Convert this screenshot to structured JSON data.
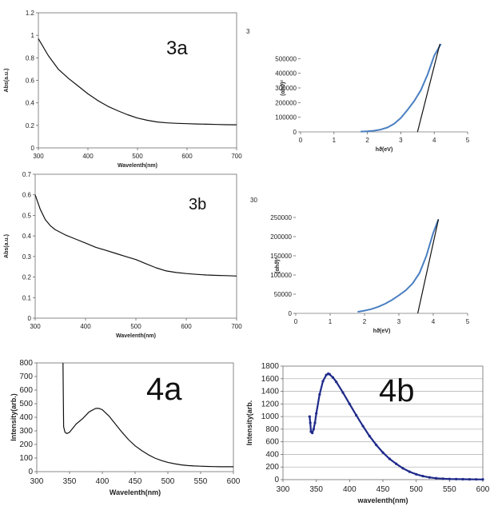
{
  "chart_data": [
    {
      "id": "3a-abs",
      "type": "line",
      "panel_label": "3a",
      "xlabel": "Wavelenth(nm)",
      "ylabel": "Abs(a.u.)",
      "xlim": [
        300,
        700
      ],
      "ylim": [
        0,
        1.2
      ],
      "xticks": [
        "300",
        "400",
        "500",
        "600",
        "700"
      ],
      "yticks": [
        "0",
        "0.2",
        "0.4",
        "0.6",
        "0.8",
        "1",
        "1.2"
      ],
      "colors": {
        "line": "#111111"
      },
      "series": [
        {
          "x": [
            300,
            320,
            340,
            360,
            380,
            400,
            420,
            440,
            460,
            480,
            500,
            520,
            540,
            560,
            580,
            600,
            620,
            640,
            660,
            680,
            700
          ],
          "y": [
            0.97,
            0.82,
            0.7,
            0.62,
            0.55,
            0.48,
            0.42,
            0.37,
            0.33,
            0.295,
            0.265,
            0.245,
            0.23,
            0.222,
            0.218,
            0.215,
            0.212,
            0.21,
            0.208,
            0.206,
            0.205
          ]
        }
      ]
    },
    {
      "id": "3a-tauc",
      "type": "line",
      "title_fragment": "3",
      "xlabel": "hϑ(eV)",
      "ylabel": "(αhϑ)²",
      "xlim": [
        0,
        5
      ],
      "ylim": [
        0,
        600000
      ],
      "xticks": [
        "0",
        "1",
        "2",
        "3",
        "4",
        "5"
      ],
      "yticks": [
        "0",
        "100000",
        "200000",
        "300000",
        "400000",
        "500000"
      ],
      "colors": {
        "curve": "#4a7fc1",
        "tangent": "#111111"
      },
      "series": [
        {
          "x": [
            1.8,
            2.0,
            2.2,
            2.4,
            2.6,
            2.8,
            3.0,
            3.2,
            3.4,
            3.6,
            3.8,
            4.0,
            4.2
          ],
          "y": [
            2000,
            4000,
            8000,
            16000,
            30000,
            55000,
            95000,
            150000,
            210000,
            285000,
            390000,
            520000,
            600000
          ]
        },
        {
          "x": [
            3.5,
            4.17
          ],
          "y": [
            0,
            600000
          ]
        }
      ]
    },
    {
      "id": "3b-abs",
      "type": "line",
      "panel_label": "3b",
      "xlabel": "Wavelenth(nm)",
      "ylabel": "Abs(a.u.)",
      "xlim": [
        300,
        700
      ],
      "ylim": [
        0,
        0.7
      ],
      "xticks": [
        "300",
        "400",
        "500",
        "600",
        "700"
      ],
      "yticks": [
        "0",
        "0.1",
        "0.2",
        "0.3",
        "0.4",
        "0.5",
        "0.6",
        "0.7"
      ],
      "colors": {
        "line": "#111111"
      },
      "series": [
        {
          "x": [
            300,
            310,
            320,
            330,
            340,
            360,
            380,
            400,
            420,
            440,
            460,
            480,
            500,
            520,
            540,
            560,
            580,
            600,
            620,
            640,
            660,
            680,
            700
          ],
          "y": [
            0.6,
            0.53,
            0.48,
            0.45,
            0.43,
            0.405,
            0.385,
            0.365,
            0.345,
            0.33,
            0.315,
            0.3,
            0.285,
            0.265,
            0.245,
            0.23,
            0.222,
            0.217,
            0.213,
            0.21,
            0.208,
            0.207,
            0.205
          ]
        }
      ]
    },
    {
      "id": "3b-tauc",
      "type": "line",
      "title_fragment": "30",
      "xlabel": "hϑ(eV)",
      "ylabel": "(αhϑ)²",
      "xlim": [
        0,
        5
      ],
      "ylim": [
        0,
        250000
      ],
      "xticks": [
        "0",
        "1",
        "2",
        "3",
        "4",
        "5"
      ],
      "yticks": [
        "0",
        "50000",
        "100000",
        "150000",
        "200000",
        "250000"
      ],
      "colors": {
        "curve": "#4a7fc1",
        "tangent": "#111111"
      },
      "series": [
        {
          "x": [
            1.8,
            2.0,
            2.2,
            2.4,
            2.6,
            2.8,
            3.0,
            3.2,
            3.4,
            3.6,
            3.8,
            4.0,
            4.15
          ],
          "y": [
            4000,
            7000,
            11000,
            17000,
            25000,
            35000,
            47000,
            60000,
            78000,
            105000,
            150000,
            210000,
            245000
          ]
        },
        {
          "x": [
            3.55,
            4.15
          ],
          "y": [
            0,
            245000
          ]
        }
      ]
    },
    {
      "id": "4a-pl",
      "type": "line",
      "panel_label": "4a",
      "xlabel": "Wavelenth(nm)",
      "ylabel": "Intensity(arb.)",
      "xlim": [
        300,
        600
      ],
      "ylim": [
        0,
        800
      ],
      "xticks": [
        "300",
        "350",
        "400",
        "450",
        "500",
        "550",
        "600"
      ],
      "yticks": [
        "0",
        "100",
        "200",
        "300",
        "400",
        "500",
        "600",
        "700",
        "800"
      ],
      "colors": {
        "line": "#111111"
      },
      "series": [
        {
          "x": [
            340,
            341,
            343,
            346,
            350,
            355,
            360,
            370,
            380,
            390,
            395,
            400,
            410,
            420,
            430,
            440,
            450,
            460,
            470,
            480,
            490,
            500,
            510,
            520,
            530,
            540,
            550,
            560,
            570,
            580,
            590,
            600
          ],
          "y": [
            800,
            330,
            290,
            280,
            290,
            320,
            350,
            390,
            440,
            465,
            465,
            455,
            410,
            350,
            290,
            235,
            190,
            155,
            125,
            100,
            82,
            68,
            58,
            50,
            45,
            42,
            40,
            38,
            37,
            36,
            36,
            36
          ]
        }
      ]
    },
    {
      "id": "4b-pl",
      "type": "line",
      "panel_label": "4b",
      "xlabel": "wavelenth(nm)",
      "ylabel": "Intensity(arb.",
      "xlim": [
        300,
        600
      ],
      "ylim": [
        0,
        1800
      ],
      "xticks": [
        "300",
        "350",
        "400",
        "450",
        "500",
        "550",
        "600"
      ],
      "yticks": [
        "0",
        "200",
        "400",
        "600",
        "800",
        "1000",
        "1200",
        "1400",
        "1600",
        "1800"
      ],
      "colors": {
        "line": "#1f2a8a"
      },
      "series": [
        {
          "x": [
            340,
            341,
            342,
            344,
            346,
            348,
            350,
            355,
            360,
            365,
            368,
            370,
            375,
            380,
            390,
            400,
            410,
            420,
            430,
            440,
            450,
            460,
            470,
            480,
            490,
            500,
            510,
            520,
            530,
            540,
            550,
            560,
            570,
            580,
            590,
            600
          ],
          "y": [
            1000,
            900,
            760,
            740,
            800,
            900,
            1050,
            1350,
            1560,
            1660,
            1680,
            1670,
            1620,
            1550,
            1380,
            1200,
            1020,
            850,
            690,
            550,
            430,
            330,
            250,
            180,
            125,
            85,
            55,
            35,
            22,
            15,
            10,
            8,
            6,
            5,
            4,
            3
          ]
        }
      ]
    }
  ]
}
